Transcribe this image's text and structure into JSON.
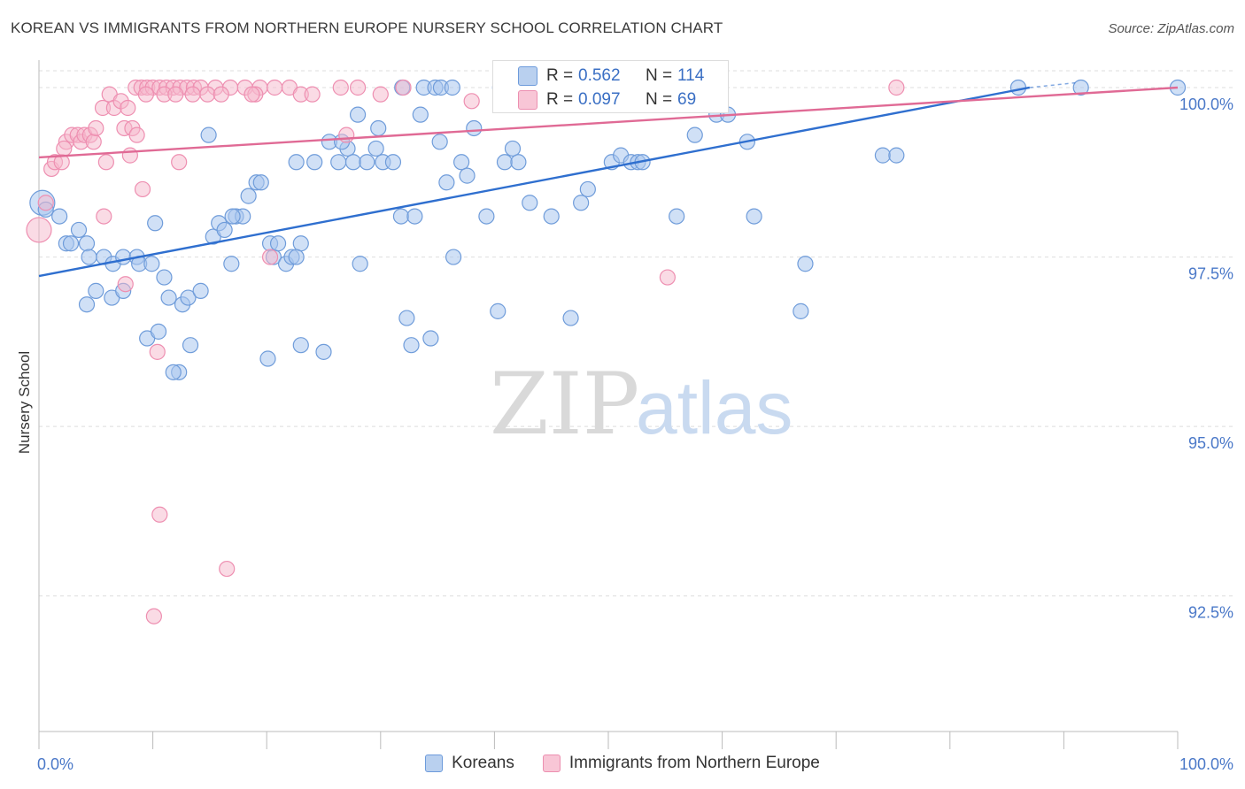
{
  "title": "KOREAN VS IMMIGRANTS FROM NORTHERN EUROPE NURSERY SCHOOL CORRELATION CHART",
  "source": "Source: ZipAtlas.com",
  "colors": {
    "koreans_fill": "#a9c6ee",
    "koreans_stroke": "#6f9cda",
    "koreans_line": "#2f6fcf",
    "immigrants_fill": "#f6b8cc",
    "immigrants_stroke": "#ee8fb1",
    "immigrants_line": "#e06a95",
    "tick_label": "#4a78c8",
    "grid": "#dedede"
  },
  "stats": {
    "koreans": {
      "r_label": "R =",
      "r": "0.562",
      "n_label": "N =",
      "n": "114"
    },
    "immigrants": {
      "r_label": "R =",
      "r": "0.097",
      "n_label": "N =",
      "n": "69"
    }
  },
  "watermark": {
    "zip": "ZIP",
    "atlas": "atlas"
  },
  "chart_data": {
    "type": "scatter",
    "title": "KOREAN VS IMMIGRANTS FROM NORTHERN EUROPE NURSERY SCHOOL CORRELATION CHART",
    "xlabel": "",
    "ylabel": "Nursery School",
    "xlim": [
      0,
      100
    ],
    "ylim": [
      90.5,
      100.3
    ],
    "x_tick_labels": [
      "0.0%",
      "100.0%"
    ],
    "y_ticks": [
      92.5,
      95.0,
      97.5,
      100.0
    ],
    "y_tick_labels": [
      "92.5%",
      "95.0%",
      "97.5%",
      "100.0%"
    ],
    "legend": [
      "Koreans",
      "Immigrants from Northern Europe"
    ],
    "series": [
      {
        "name": "Koreans",
        "trend": {
          "x": [
            0,
            87
          ],
          "y": [
            97.22,
            100.0
          ]
        },
        "points": [
          [
            0.3,
            98.3
          ],
          [
            0.6,
            98.2
          ],
          [
            1.8,
            98.1
          ],
          [
            2.4,
            97.7
          ],
          [
            3.5,
            97.9
          ],
          [
            4.2,
            97.7
          ],
          [
            4.4,
            97.5
          ],
          [
            5.7,
            97.5
          ],
          [
            6.5,
            97.4
          ],
          [
            7.4,
            97.5
          ],
          [
            8.6,
            97.5
          ],
          [
            8.8,
            97.4
          ],
          [
            9.9,
            97.4
          ],
          [
            2.8,
            97.7
          ],
          [
            5.0,
            97.0
          ],
          [
            4.2,
            96.8
          ],
          [
            6.4,
            96.9
          ],
          [
            7.4,
            97.0
          ],
          [
            9.5,
            96.3
          ],
          [
            10.5,
            96.4
          ],
          [
            11.0,
            97.2
          ],
          [
            11.4,
            96.9
          ],
          [
            12.6,
            96.8
          ],
          [
            13.1,
            96.9
          ],
          [
            13.3,
            96.2
          ],
          [
            14.2,
            97.0
          ],
          [
            12.3,
            95.8
          ],
          [
            11.8,
            95.8
          ],
          [
            10.2,
            98.0
          ],
          [
            15.3,
            97.8
          ],
          [
            15.8,
            98.0
          ],
          [
            16.3,
            97.9
          ],
          [
            16.9,
            97.4
          ],
          [
            17.3,
            98.1
          ],
          [
            17.9,
            98.1
          ],
          [
            18.4,
            98.4
          ],
          [
            19.1,
            98.6
          ],
          [
            19.5,
            98.6
          ],
          [
            17.0,
            98.1
          ],
          [
            14.9,
            99.3
          ],
          [
            20.3,
            97.7
          ],
          [
            20.6,
            97.5
          ],
          [
            21.0,
            97.7
          ],
          [
            21.7,
            97.4
          ],
          [
            22.2,
            97.5
          ],
          [
            23.0,
            97.7
          ],
          [
            22.6,
            97.5
          ],
          [
            20.1,
            96.0
          ],
          [
            23.0,
            96.2
          ],
          [
            25.0,
            96.1
          ],
          [
            22.6,
            98.9
          ],
          [
            24.2,
            98.9
          ],
          [
            25.5,
            99.2
          ],
          [
            26.3,
            98.9
          ],
          [
            27.1,
            99.1
          ],
          [
            27.6,
            98.9
          ],
          [
            26.6,
            99.2
          ],
          [
            28.0,
            99.6
          ],
          [
            28.8,
            98.9
          ],
          [
            29.6,
            99.1
          ],
          [
            30.2,
            98.9
          ],
          [
            29.8,
            99.4
          ],
          [
            31.1,
            98.9
          ],
          [
            28.2,
            97.4
          ],
          [
            31.8,
            98.1
          ],
          [
            32.3,
            96.6
          ],
          [
            32.7,
            96.2
          ],
          [
            34.4,
            96.3
          ],
          [
            33.0,
            98.1
          ],
          [
            33.5,
            99.6
          ],
          [
            35.2,
            99.2
          ],
          [
            35.8,
            98.6
          ],
          [
            36.4,
            97.5
          ],
          [
            37.1,
            98.9
          ],
          [
            37.6,
            98.7
          ],
          [
            38.2,
            99.4
          ],
          [
            39.3,
            98.1
          ],
          [
            40.3,
            96.7
          ],
          [
            40.9,
            98.9
          ],
          [
            41.6,
            99.1
          ],
          [
            42.1,
            98.9
          ],
          [
            43.1,
            98.3
          ],
          [
            45.0,
            98.1
          ],
          [
            46.7,
            96.6
          ],
          [
            47.6,
            98.3
          ],
          [
            48.2,
            98.5
          ],
          [
            50.3,
            98.9
          ],
          [
            51.1,
            99.0
          ],
          [
            52.0,
            98.9
          ],
          [
            52.6,
            98.9
          ],
          [
            53.0,
            98.9
          ],
          [
            56.0,
            98.1
          ],
          [
            57.6,
            99.3
          ],
          [
            59.5,
            99.6
          ],
          [
            60.5,
            99.6
          ],
          [
            62.2,
            99.2
          ],
          [
            62.8,
            98.1
          ],
          [
            66.9,
            96.7
          ],
          [
            67.3,
            97.4
          ],
          [
            74.1,
            99.0
          ],
          [
            75.3,
            99.0
          ],
          [
            31.9,
            100.0
          ],
          [
            33.8,
            100.0
          ],
          [
            34.8,
            100.0
          ],
          [
            35.3,
            100.0
          ],
          [
            36.3,
            100.0
          ],
          [
            40.5,
            100.0
          ],
          [
            41.6,
            100.0
          ],
          [
            44.2,
            100.0
          ],
          [
            50.2,
            100.0
          ],
          [
            59.0,
            100.0
          ],
          [
            86.0,
            100.0
          ],
          [
            91.5,
            100.0
          ],
          [
            100.0,
            100.0
          ]
        ]
      },
      {
        "name": "Immigrants from Northern Europe",
        "trend": {
          "x": [
            0,
            100
          ],
          "y": [
            98.97,
            100.0
          ]
        },
        "points": [
          [
            0.0,
            97.9
          ],
          [
            0.6,
            98.3
          ],
          [
            1.1,
            98.8
          ],
          [
            1.4,
            98.9
          ],
          [
            2.0,
            98.9
          ],
          [
            2.4,
            99.2
          ],
          [
            2.2,
            99.1
          ],
          [
            2.9,
            99.3
          ],
          [
            3.4,
            99.3
          ],
          [
            3.7,
            99.2
          ],
          [
            4.0,
            99.3
          ],
          [
            4.5,
            99.3
          ],
          [
            4.8,
            99.2
          ],
          [
            5.0,
            99.4
          ],
          [
            5.6,
            99.7
          ],
          [
            6.2,
            99.9
          ],
          [
            6.6,
            99.7
          ],
          [
            7.2,
            99.8
          ],
          [
            7.8,
            99.7
          ],
          [
            7.5,
            99.4
          ],
          [
            8.2,
            99.4
          ],
          [
            8.6,
            99.3
          ],
          [
            5.9,
            98.9
          ],
          [
            9.1,
            98.5
          ],
          [
            12.3,
            98.9
          ],
          [
            5.7,
            98.1
          ],
          [
            7.6,
            97.1
          ],
          [
            8.5,
            100.0
          ],
          [
            9.0,
            100.0
          ],
          [
            9.5,
            100.0
          ],
          [
            10.0,
            100.0
          ],
          [
            10.6,
            100.0
          ],
          [
            11.2,
            100.0
          ],
          [
            11.8,
            100.0
          ],
          [
            12.4,
            100.0
          ],
          [
            13.0,
            100.0
          ],
          [
            13.6,
            100.0
          ],
          [
            14.2,
            100.0
          ],
          [
            15.5,
            100.0
          ],
          [
            16.8,
            100.0
          ],
          [
            18.1,
            100.0
          ],
          [
            19.4,
            100.0
          ],
          [
            20.7,
            100.0
          ],
          [
            22.0,
            100.0
          ],
          [
            26.5,
            100.0
          ],
          [
            28.0,
            100.0
          ],
          [
            32.0,
            100.0
          ],
          [
            9.4,
            99.9
          ],
          [
            11.0,
            99.9
          ],
          [
            12.0,
            99.9
          ],
          [
            14.8,
            99.9
          ],
          [
            19.0,
            99.9
          ],
          [
            20.3,
            97.5
          ],
          [
            10.4,
            96.1
          ],
          [
            10.6,
            93.7
          ],
          [
            16.5,
            92.9
          ],
          [
            10.1,
            92.2
          ],
          [
            55.2,
            97.2
          ],
          [
            75.3,
            100.0
          ],
          [
            27.0,
            99.3
          ],
          [
            23.0,
            99.9
          ],
          [
            24.0,
            99.9
          ],
          [
            13.5,
            99.9
          ],
          [
            16.0,
            99.9
          ],
          [
            18.7,
            99.9
          ],
          [
            30.0,
            99.9
          ],
          [
            38.0,
            99.8
          ],
          [
            49.8,
            100.0
          ],
          [
            8.0,
            99.0
          ]
        ]
      }
    ]
  }
}
